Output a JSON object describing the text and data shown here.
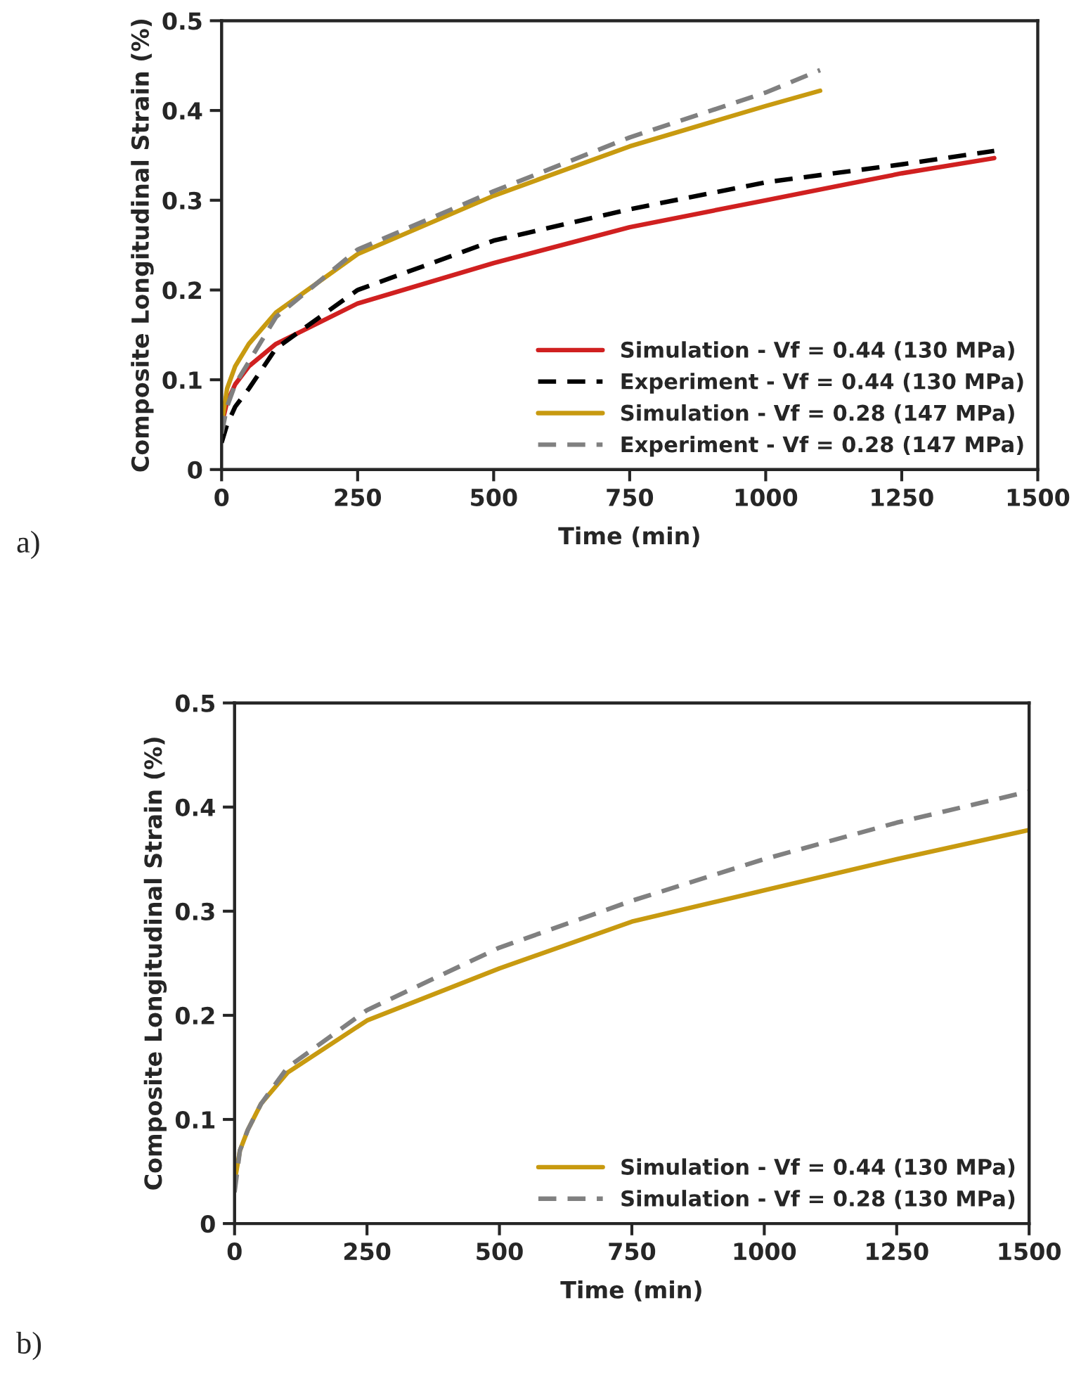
{
  "chart_data": [
    {
      "type": "line",
      "xlabel": "Time (min)",
      "ylabel": "Composite Longitudinal Strain (%)",
      "xlim": [
        0,
        1500
      ],
      "ylim": [
        0,
        0.5
      ],
      "xticks": [
        0,
        250,
        500,
        750,
        1000,
        1250,
        1500
      ],
      "yticks": [
        0,
        0.1,
        0.2,
        0.3,
        0.4,
        0.5
      ],
      "grid": false,
      "legend": "bottom right",
      "annotations": [
        "a)"
      ],
      "series": [
        {
          "name": "Simulation - Vf = 0.44 (130 MPa)",
          "color": "#d02020",
          "line_style": "solid",
          "x": [
            0,
            10,
            25,
            50,
            100,
            250,
            500,
            750,
            1000,
            1250,
            1420
          ],
          "values": [
            0.05,
            0.075,
            0.095,
            0.115,
            0.14,
            0.185,
            0.23,
            0.27,
            0.3,
            0.33,
            0.347
          ]
        },
        {
          "name": "Experiment - Vf = 0.44 (130 MPa)",
          "color": "#000000",
          "line_style": "dashed",
          "x": [
            0,
            10,
            25,
            50,
            100,
            250,
            500,
            750,
            1000,
            1250,
            1420
          ],
          "values": [
            0.03,
            0.05,
            0.07,
            0.09,
            0.135,
            0.2,
            0.255,
            0.29,
            0.32,
            0.34,
            0.355
          ]
        },
        {
          "name": "Simulation - Vf = 0.28 (147 MPa)",
          "color": "#c89a10",
          "line_style": "solid",
          "x": [
            0,
            10,
            25,
            50,
            100,
            250,
            500,
            750,
            1000,
            1100
          ],
          "values": [
            0.05,
            0.09,
            0.115,
            0.14,
            0.175,
            0.24,
            0.305,
            0.36,
            0.405,
            0.422
          ]
        },
        {
          "name": "Experiment - Vf = 0.28 (147 MPa)",
          "color": "#808080",
          "line_style": "dashed",
          "x": [
            0,
            10,
            25,
            50,
            100,
            250,
            500,
            750,
            1000,
            1100
          ],
          "values": [
            0.04,
            0.07,
            0.095,
            0.12,
            0.17,
            0.245,
            0.31,
            0.37,
            0.42,
            0.445
          ]
        }
      ]
    },
    {
      "type": "line",
      "xlabel": "Time (min)",
      "ylabel": "Composite Longitudinal Strain (%)",
      "xlim": [
        0,
        1500
      ],
      "ylim": [
        0,
        0.5
      ],
      "xticks": [
        0,
        250,
        500,
        750,
        1000,
        1250,
        1500
      ],
      "yticks": [
        0,
        0.1,
        0.2,
        0.3,
        0.4,
        0.5
      ],
      "grid": false,
      "legend": "bottom right",
      "annotations": [
        "b)"
      ],
      "series": [
        {
          "name": "Simulation - Vf = 0.44 (130 MPa)",
          "color": "#c89a10",
          "line_style": "solid",
          "x": [
            0,
            10,
            25,
            50,
            100,
            250,
            500,
            750,
            1000,
            1250,
            1500
          ],
          "values": [
            0.04,
            0.07,
            0.09,
            0.115,
            0.145,
            0.195,
            0.245,
            0.29,
            0.32,
            0.35,
            0.378
          ]
        },
        {
          "name": "Simulation - Vf = 0.28 (130 MPa)",
          "color": "#808080",
          "line_style": "dashed",
          "x": [
            0,
            10,
            25,
            50,
            100,
            250,
            500,
            750,
            1000,
            1250,
            1500
          ],
          "values": [
            0.03,
            0.07,
            0.09,
            0.115,
            0.15,
            0.205,
            0.265,
            0.31,
            0.35,
            0.385,
            0.415
          ]
        }
      ]
    }
  ]
}
